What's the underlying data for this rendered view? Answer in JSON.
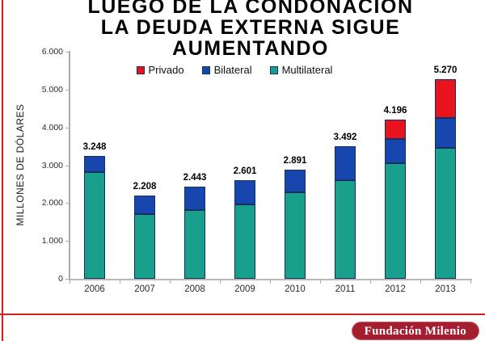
{
  "header": {
    "title_lines": [
      "LUEGO DE LA CONDONACIÓN",
      "LA DEUDA EXTERNA SIGUE",
      "AUMENTANDO"
    ]
  },
  "chart_data": {
    "type": "bar",
    "stacked": true,
    "title": "LUEGO DE LA CONDONACIÓN LA DEUDA EXTERNA SIGUE AUMENTANDO",
    "categories": [
      "2006",
      "2007",
      "2008",
      "2009",
      "2010",
      "2011",
      "2012",
      "2013"
    ],
    "series": [
      {
        "name": "Privado",
        "color": "#e8131c",
        "values": [
          0,
          0,
          0,
          0,
          0,
          0,
          510,
          1020
        ]
      },
      {
        "name": "Bilateral",
        "color": "#1746af",
        "values": [
          428,
          508,
          623,
          631,
          611,
          892,
          640,
          800
        ]
      },
      {
        "name": "Multilateral",
        "color": "#19a08d",
        "values": [
          2820,
          1700,
          1820,
          1970,
          2280,
          2600,
          3046,
          3450
        ]
      }
    ],
    "totals": [
      3248,
      2208,
      2443,
      2601,
      2891,
      3492,
      4196,
      5270
    ],
    "total_labels": [
      "3.248",
      "2.208",
      "2.443",
      "2.601",
      "2.891",
      "3.492",
      "4.196",
      "5.270"
    ],
    "xlabel": "",
    "ylabel": "MILLONES DE DÓLARES",
    "ylim": [
      0,
      6000
    ],
    "ytick_step": 1000,
    "ytick_labels": [
      "0",
      "1.000",
      "2.000",
      "3.000",
      "4.000",
      "5.000",
      "6.000"
    ],
    "legend_position": "top",
    "grid": false
  },
  "footer": {
    "brand": "Fundación Milenio"
  },
  "theme": {
    "accent_line_color": "#cc2222",
    "badge_background": "#a51e30",
    "badge_text_color": "#ffffff",
    "segment_border_color": "#15305e",
    "axis_color": "#ababab"
  }
}
